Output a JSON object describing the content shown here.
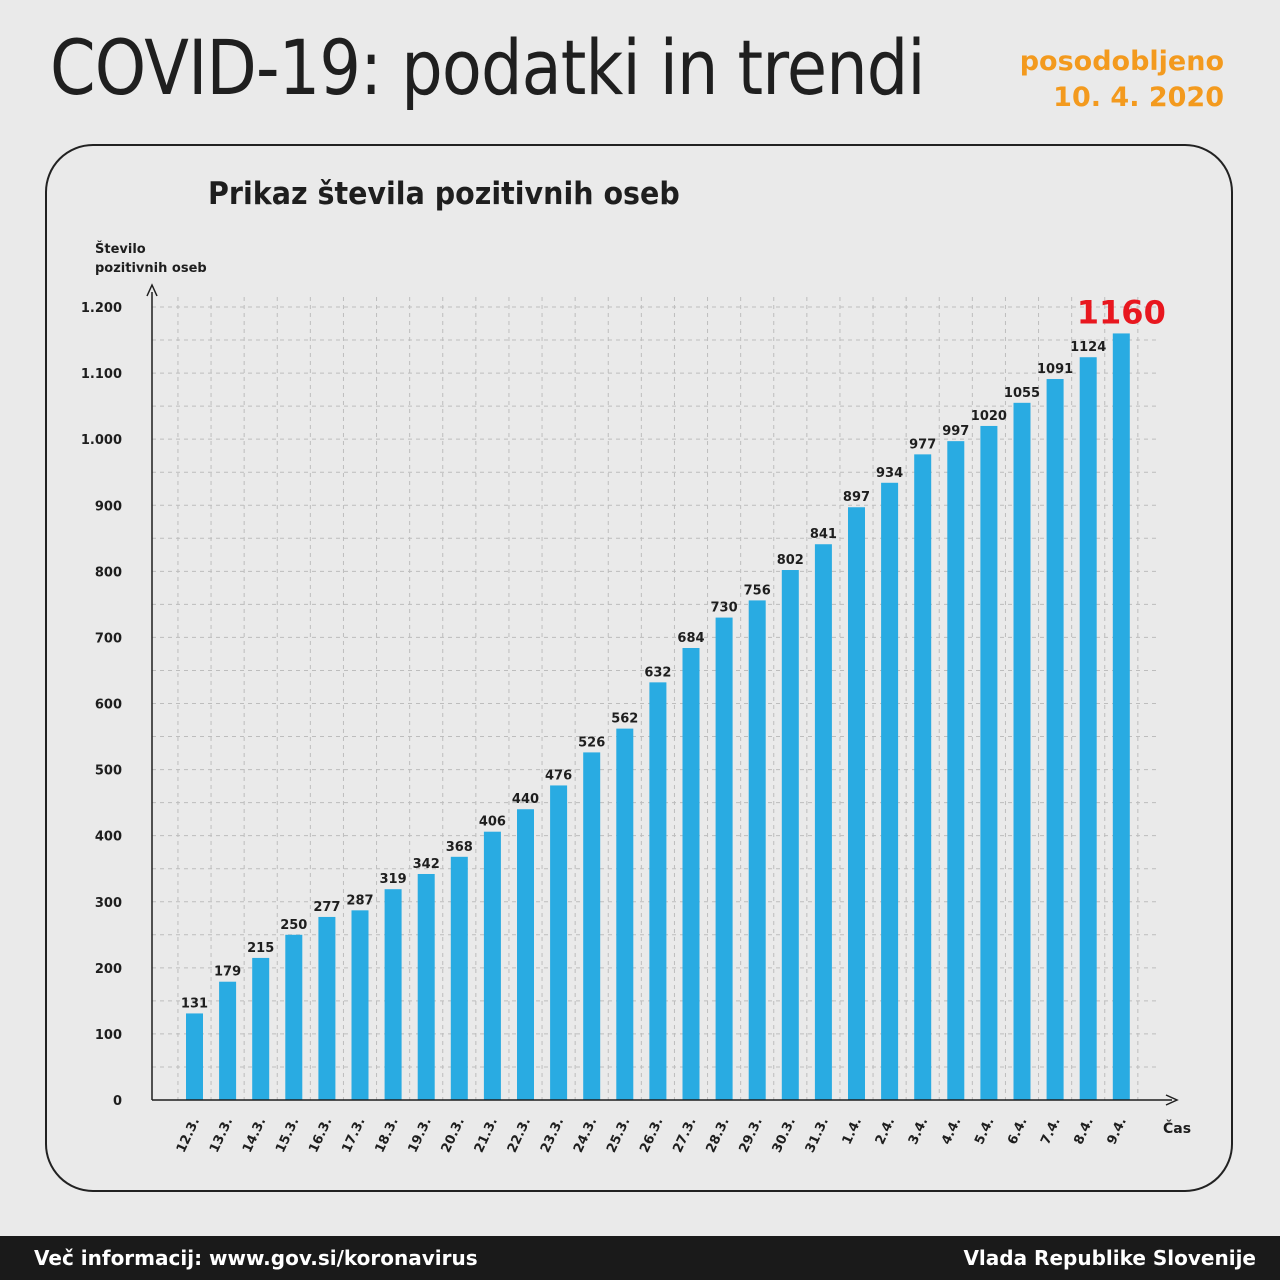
{
  "header": {
    "title": "COVID-19: podatki in trendi",
    "updated_label": "posodobljeno",
    "updated_date": "10. 4. 2020"
  },
  "colors": {
    "bar": "#29abe2",
    "highlight": "#e8171f",
    "accent": "#f39a1e",
    "grid": "#bdbdbd"
  },
  "chart_data": {
    "type": "bar",
    "title": "Prikaz števila pozitivnih oseb",
    "ylabel_line1": "Število",
    "ylabel_line2": "pozitivnih oseb",
    "xlabel": "Čas",
    "ylim": [
      0,
      1200
    ],
    "yticks": [
      {
        "value": 0,
        "label": "0"
      },
      {
        "value": 100,
        "label": "100"
      },
      {
        "value": 200,
        "label": "200"
      },
      {
        "value": 300,
        "label": "300"
      },
      {
        "value": 400,
        "label": "400"
      },
      {
        "value": 500,
        "label": "500"
      },
      {
        "value": 600,
        "label": "600"
      },
      {
        "value": 700,
        "label": "700"
      },
      {
        "value": 800,
        "label": "800"
      },
      {
        "value": 900,
        "label": "900"
      },
      {
        "value": 1000,
        "label": "1.000"
      },
      {
        "value": 1100,
        "label": "1.100"
      },
      {
        "value": 1200,
        "label": "1.200"
      }
    ],
    "categories": [
      "12.3.",
      "13.3.",
      "14.3.",
      "15.3.",
      "16.3.",
      "17.3.",
      "18.3.",
      "19.3.",
      "20.3.",
      "21.3.",
      "22.3.",
      "23.3.",
      "24.3.",
      "25.3.",
      "26.3.",
      "27.3.",
      "28.3.",
      "29.3.",
      "30.3.",
      "31.3.",
      "1.4.",
      "2.4.",
      "3.4.",
      "4.4.",
      "5.4.",
      "6.4.",
      "7.4.",
      "8.4.",
      "9.4."
    ],
    "values": [
      131,
      179,
      215,
      250,
      277,
      287,
      319,
      342,
      368,
      406,
      440,
      476,
      526,
      562,
      632,
      684,
      730,
      756,
      802,
      841,
      897,
      934,
      977,
      997,
      1020,
      1055,
      1091,
      1124,
      1160
    ],
    "highlight_last": true,
    "grid": true
  },
  "footer": {
    "left": "Več informacij: www.gov.si/koronavirus",
    "right": "Vlada Republike Slovenije"
  }
}
